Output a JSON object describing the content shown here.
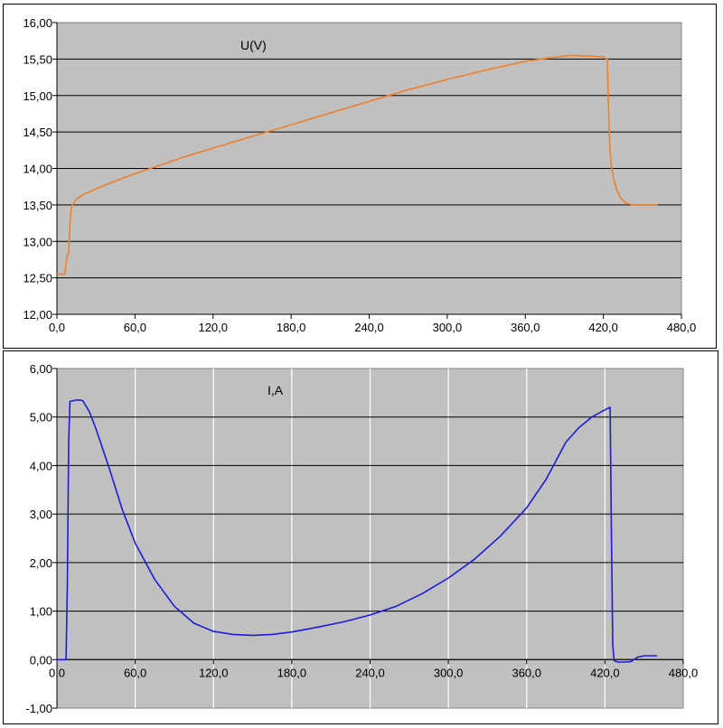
{
  "chart_data": [
    {
      "type": "line",
      "title": "U(V)",
      "xlabel": "",
      "ylabel": "",
      "xlim": [
        0,
        480
      ],
      "ylim": [
        12,
        16
      ],
      "x_ticks": [
        "0,0",
        "60,0",
        "120,0",
        "180,0",
        "240,0",
        "300,0",
        "360,0",
        "420,0",
        "480,0"
      ],
      "y_ticks": [
        "12,00",
        "12,50",
        "13,00",
        "13,50",
        "14,00",
        "14,50",
        "15,00",
        "15,50",
        "16,00"
      ],
      "grid": {
        "horizontal": true,
        "vertical": false
      },
      "plot_background": "#c0c0c0",
      "series": [
        {
          "color": "#f07f2a",
          "x": [
            0,
            6,
            8,
            9,
            10,
            11,
            12,
            15,
            20,
            30,
            45,
            60,
            80,
            100,
            120,
            150,
            180,
            210,
            240,
            270,
            300,
            330,
            360,
            380,
            395,
            410,
            420,
            423,
            424,
            425,
            426,
            428,
            430,
            433,
            437,
            442,
            448,
            455,
            462
          ],
          "y": [
            12.55,
            12.55,
            12.82,
            12.84,
            13.25,
            13.45,
            13.5,
            13.58,
            13.64,
            13.72,
            13.83,
            13.93,
            14.05,
            14.17,
            14.28,
            14.44,
            14.6,
            14.76,
            14.92,
            15.08,
            15.22,
            15.35,
            15.47,
            15.52,
            15.55,
            15.54,
            15.53,
            15.5,
            14.8,
            14.3,
            14.05,
            13.85,
            13.72,
            13.6,
            13.53,
            13.5,
            13.5,
            13.5,
            13.5
          ]
        }
      ]
    },
    {
      "type": "line",
      "title": "I,A",
      "xlabel": "",
      "ylabel": "",
      "xlim": [
        0,
        480
      ],
      "ylim": [
        -1,
        6
      ],
      "x_ticks": [
        "0,0",
        "60,0",
        "120,0",
        "180,0",
        "240,0",
        "300,0",
        "360,0",
        "420,0",
        "480,0"
      ],
      "y_ticks": [
        "-1,00",
        "0,00",
        "1,00",
        "2,00",
        "3,00",
        "4,00",
        "5,00",
        "6,00"
      ],
      "grid": {
        "horizontal": true,
        "vertical": true
      },
      "plot_background": "#c0c0c0",
      "series": [
        {
          "color": "#1c1cd8",
          "x": [
            0,
            7,
            8,
            9,
            10,
            15,
            18,
            20,
            25,
            30,
            40,
            50,
            60,
            75,
            90,
            105,
            120,
            135,
            150,
            165,
            180,
            200,
            220,
            240,
            260,
            280,
            300,
            320,
            340,
            360,
            375,
            390,
            400,
            410,
            420,
            424,
            425,
            426,
            427,
            430,
            435,
            440,
            445,
            450,
            460
          ],
          "y": [
            0,
            0,
            1.5,
            4.5,
            5.32,
            5.35,
            5.35,
            5.33,
            5.1,
            4.75,
            3.95,
            3.1,
            2.4,
            1.65,
            1.1,
            0.75,
            0.58,
            0.52,
            0.5,
            0.52,
            0.57,
            0.67,
            0.78,
            0.92,
            1.1,
            1.36,
            1.68,
            2.07,
            2.55,
            3.13,
            3.72,
            4.48,
            4.78,
            5.0,
            5.15,
            5.2,
            2.5,
            0.3,
            -0.02,
            -0.05,
            -0.05,
            -0.04,
            0.05,
            0.08,
            0.08
          ]
        }
      ]
    }
  ]
}
